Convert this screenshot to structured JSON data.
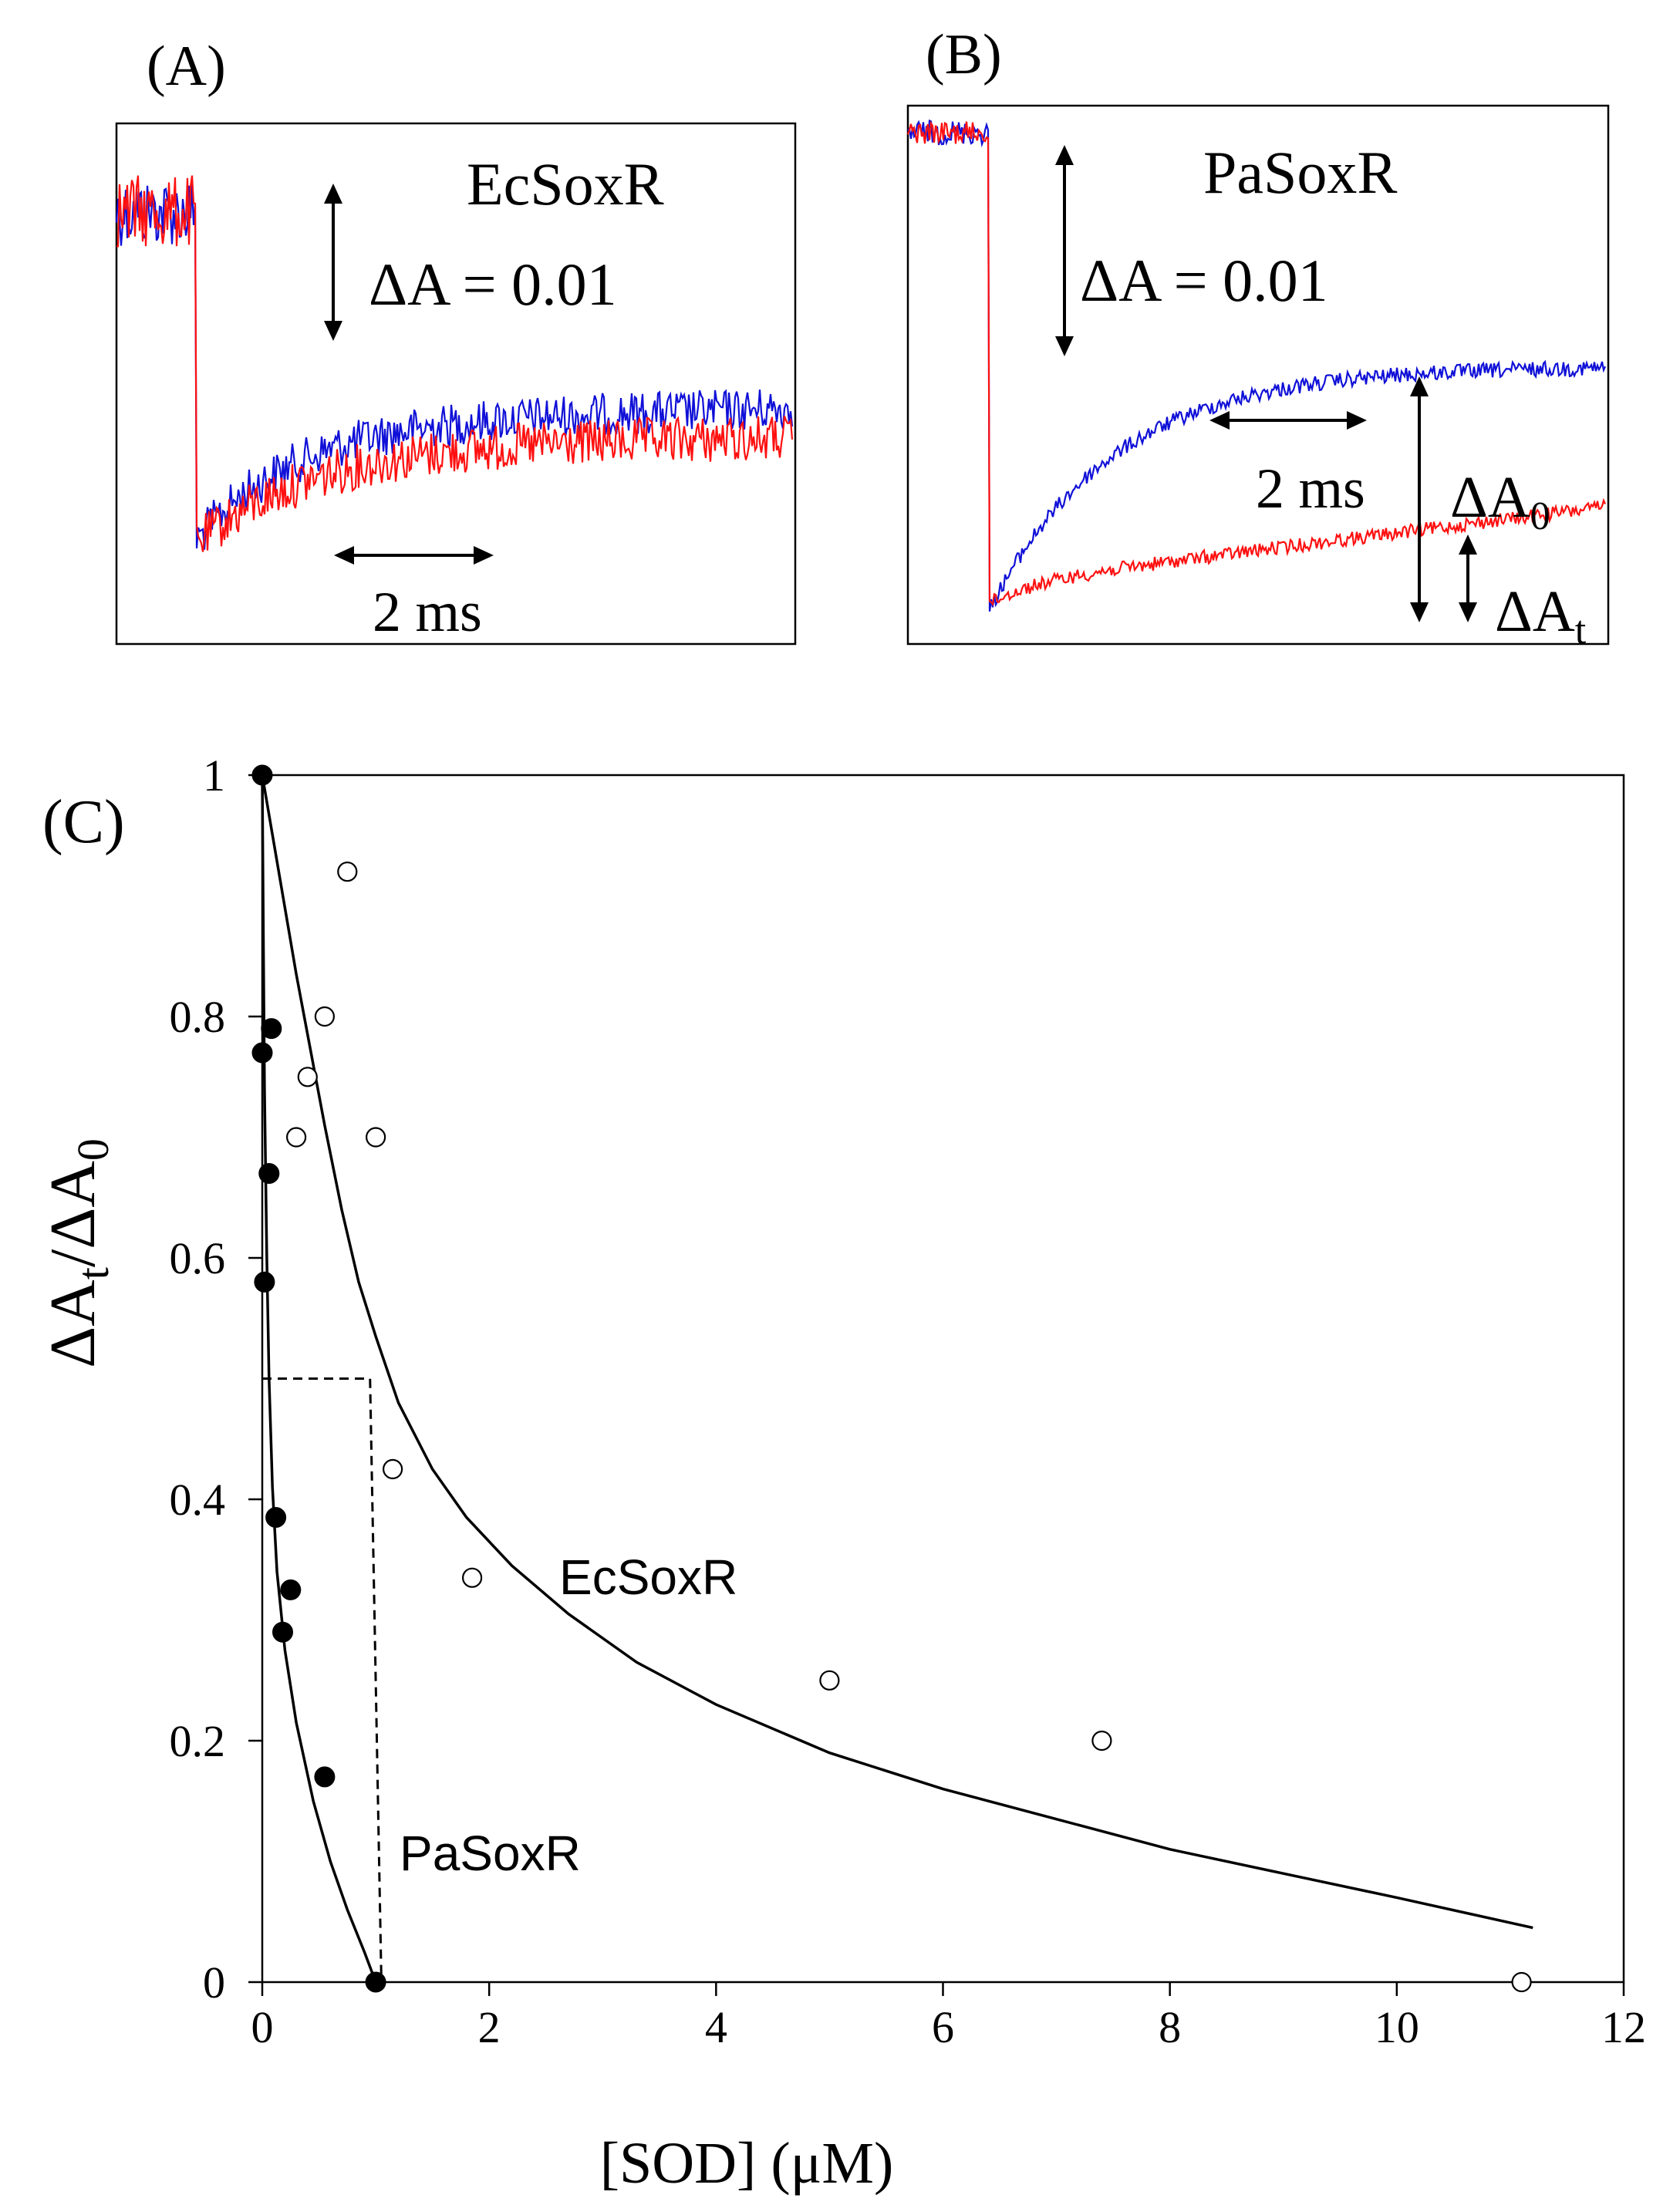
{
  "panels": {
    "a": {
      "letter": "(A)",
      "protein": "EcSoxR",
      "scale_amplitude": "ΔA = 0.01",
      "scale_time": "2 ms"
    },
    "b": {
      "letter": "(B)",
      "protein": "PaSoxR",
      "scale_amplitude": "ΔA = 0.01",
      "scale_time": "2 ms",
      "delta_a": "ΔA",
      "sub_zero": "0",
      "sub_t": "t"
    }
  },
  "trace_colors": {
    "blue": "#1010d8",
    "red": "#ff1010"
  },
  "chart_data": {
    "type": "scatter",
    "panel_letter": "(C)",
    "xlabel": "[SOD] (μM)",
    "ylabel_main": "ΔA",
    "ylabel_sub_t": "t",
    "ylabel_mid": "/ΔA",
    "ylabel_sub_0": "0",
    "xlim": [
      0,
      12
    ],
    "ylim": [
      0,
      1
    ],
    "xticks": [
      0,
      2,
      4,
      6,
      8,
      10,
      12
    ],
    "yticks": [
      0,
      0.2,
      0.4,
      0.6,
      0.8,
      1
    ],
    "series": [
      {
        "name": "EcSoxR",
        "marker": "open-circle",
        "label": "EcSoxR",
        "points": [
          [
            0.0,
            1.0
          ],
          [
            0.75,
            0.92
          ],
          [
            0.3,
            0.7
          ],
          [
            0.4,
            0.75
          ],
          [
            0.55,
            0.8
          ],
          [
            1.0,
            0.7
          ],
          [
            1.15,
            0.425
          ],
          [
            1.85,
            0.335
          ],
          [
            5.0,
            0.25
          ],
          [
            7.4,
            0.2
          ],
          [
            11.1,
            0.0
          ]
        ],
        "fit": [
          [
            0.0,
            1.0
          ],
          [
            0.1,
            0.945
          ],
          [
            0.2,
            0.89
          ],
          [
            0.3,
            0.835
          ],
          [
            0.4,
            0.785
          ],
          [
            0.55,
            0.71
          ],
          [
            0.7,
            0.64
          ],
          [
            0.85,
            0.58
          ],
          [
            1.0,
            0.535
          ],
          [
            1.2,
            0.48
          ],
          [
            1.5,
            0.425
          ],
          [
            1.8,
            0.385
          ],
          [
            2.2,
            0.345
          ],
          [
            2.7,
            0.305
          ],
          [
            3.3,
            0.265
          ],
          [
            4.0,
            0.23
          ],
          [
            5.0,
            0.19
          ],
          [
            6.0,
            0.16
          ],
          [
            7.0,
            0.135
          ],
          [
            8.0,
            0.11
          ],
          [
            9.0,
            0.09
          ],
          [
            10.0,
            0.07
          ],
          [
            11.2,
            0.045
          ]
        ]
      },
      {
        "name": "PaSoxR",
        "marker": "filled-circle",
        "label": "PaSoxR",
        "points": [
          [
            0.0,
            1.0
          ],
          [
            0.0,
            0.77
          ],
          [
            0.08,
            0.79
          ],
          [
            0.06,
            0.67
          ],
          [
            0.02,
            0.58
          ],
          [
            0.12,
            0.385
          ],
          [
            0.25,
            0.325
          ],
          [
            0.18,
            0.29
          ],
          [
            0.55,
            0.17
          ],
          [
            1.0,
            0.0
          ]
        ],
        "fit": [
          [
            0.0,
            1.0
          ],
          [
            0.01,
            0.86
          ],
          [
            0.02,
            0.74
          ],
          [
            0.04,
            0.6
          ],
          [
            0.06,
            0.5
          ],
          [
            0.09,
            0.41
          ],
          [
            0.13,
            0.34
          ],
          [
            0.2,
            0.275
          ],
          [
            0.3,
            0.215
          ],
          [
            0.45,
            0.15
          ],
          [
            0.6,
            0.1
          ],
          [
            0.75,
            0.06
          ],
          [
            0.9,
            0.025
          ],
          [
            1.0,
            0.0
          ]
        ]
      }
    ],
    "half_point_guide": {
      "y": 0.5,
      "x_end": 0.95,
      "x_bottom": 1.05
    }
  }
}
